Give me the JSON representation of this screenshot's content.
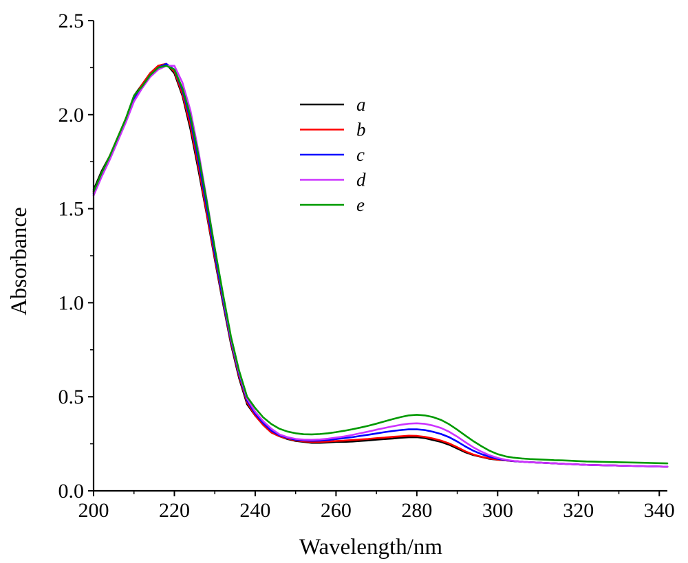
{
  "chart_data": {
    "type": "line",
    "title": "",
    "xlabel": "Wavelength/nm",
    "ylabel": "Absorbance",
    "xlim": [
      200,
      342
    ],
    "ylim": [
      0,
      2.5
    ],
    "xticks": [
      200,
      220,
      240,
      260,
      280,
      300,
      320,
      340
    ],
    "xtick_labels": [
      "200",
      "220",
      "240",
      "260",
      "280",
      "300",
      "320",
      "340"
    ],
    "yticks": [
      0,
      0.5,
      1.0,
      1.5,
      2.0,
      2.5
    ],
    "ytick_labels": [
      "0.0",
      "0.5",
      "1.0",
      "1.5",
      "2.0",
      "2.5"
    ],
    "grid": false,
    "legend_position": "upper-center",
    "x": [
      200,
      202,
      204,
      206,
      208,
      210,
      212,
      214,
      216,
      218,
      220,
      222,
      224,
      226,
      228,
      230,
      232,
      234,
      236,
      238,
      240,
      242,
      244,
      246,
      248,
      250,
      252,
      254,
      256,
      258,
      260,
      262,
      264,
      266,
      268,
      270,
      272,
      274,
      276,
      278,
      280,
      282,
      284,
      286,
      288,
      290,
      292,
      294,
      296,
      298,
      300,
      302,
      304,
      306,
      308,
      310,
      312,
      314,
      316,
      318,
      320,
      322,
      324,
      326,
      328,
      330,
      332,
      334,
      336,
      338,
      340,
      342
    ],
    "series": [
      {
        "name": "a",
        "color": "#000000",
        "values": [
          1.6,
          1.7,
          1.78,
          1.88,
          1.98,
          2.1,
          2.16,
          2.22,
          2.26,
          2.27,
          2.22,
          2.1,
          1.92,
          1.7,
          1.47,
          1.23,
          1.0,
          0.78,
          0.6,
          0.46,
          0.4,
          0.35,
          0.31,
          0.29,
          0.275,
          0.265,
          0.26,
          0.255,
          0.255,
          0.257,
          0.26,
          0.26,
          0.262,
          0.265,
          0.268,
          0.272,
          0.275,
          0.278,
          0.282,
          0.285,
          0.285,
          0.28,
          0.27,
          0.26,
          0.245,
          0.225,
          0.205,
          0.19,
          0.18,
          0.17,
          0.165,
          0.162,
          0.158,
          0.155,
          0.152,
          0.15,
          0.148,
          0.146,
          0.144,
          0.142,
          0.14,
          0.138,
          0.137,
          0.136,
          0.135,
          0.134,
          0.133,
          0.132,
          0.131,
          0.13,
          0.129,
          0.128
        ]
      },
      {
        "name": "b",
        "color": "#ff0000",
        "values": [
          1.59,
          1.69,
          1.78,
          1.88,
          1.98,
          2.09,
          2.16,
          2.22,
          2.26,
          2.27,
          2.23,
          2.11,
          1.94,
          1.72,
          1.48,
          1.24,
          1.01,
          0.79,
          0.61,
          0.47,
          0.4,
          0.35,
          0.31,
          0.29,
          0.278,
          0.268,
          0.263,
          0.26,
          0.26,
          0.262,
          0.265,
          0.267,
          0.27,
          0.273,
          0.276,
          0.28,
          0.283,
          0.287,
          0.29,
          0.293,
          0.292,
          0.287,
          0.278,
          0.267,
          0.252,
          0.232,
          0.21,
          0.193,
          0.181,
          0.172,
          0.166,
          0.162,
          0.158,
          0.155,
          0.152,
          0.15,
          0.148,
          0.146,
          0.144,
          0.142,
          0.14,
          0.138,
          0.137,
          0.136,
          0.135,
          0.134,
          0.133,
          0.132,
          0.131,
          0.13,
          0.129,
          0.128
        ]
      },
      {
        "name": "c",
        "color": "#0000ff",
        "values": [
          1.58,
          1.68,
          1.77,
          1.87,
          1.97,
          2.08,
          2.15,
          2.21,
          2.25,
          2.27,
          2.24,
          2.13,
          1.97,
          1.75,
          1.51,
          1.26,
          1.02,
          0.8,
          0.62,
          0.48,
          0.41,
          0.36,
          0.32,
          0.295,
          0.282,
          0.272,
          0.268,
          0.266,
          0.267,
          0.27,
          0.275,
          0.28,
          0.285,
          0.292,
          0.298,
          0.305,
          0.312,
          0.318,
          0.323,
          0.327,
          0.327,
          0.323,
          0.314,
          0.302,
          0.285,
          0.262,
          0.236,
          0.213,
          0.195,
          0.181,
          0.17,
          0.163,
          0.158,
          0.155,
          0.152,
          0.15,
          0.148,
          0.146,
          0.144,
          0.142,
          0.14,
          0.138,
          0.137,
          0.136,
          0.135,
          0.134,
          0.133,
          0.132,
          0.131,
          0.13,
          0.129,
          0.128
        ]
      },
      {
        "name": "d",
        "color": "#cc33ff",
        "values": [
          1.57,
          1.67,
          1.76,
          1.86,
          1.96,
          2.07,
          2.14,
          2.2,
          2.24,
          2.26,
          2.26,
          2.17,
          2.02,
          1.8,
          1.55,
          1.29,
          1.04,
          0.81,
          0.63,
          0.49,
          0.42,
          0.37,
          0.33,
          0.3,
          0.285,
          0.276,
          0.272,
          0.271,
          0.273,
          0.277,
          0.283,
          0.289,
          0.297,
          0.306,
          0.315,
          0.325,
          0.334,
          0.343,
          0.351,
          0.357,
          0.359,
          0.356,
          0.347,
          0.334,
          0.314,
          0.288,
          0.259,
          0.231,
          0.208,
          0.189,
          0.175,
          0.165,
          0.159,
          0.155,
          0.152,
          0.15,
          0.148,
          0.146,
          0.144,
          0.142,
          0.14,
          0.138,
          0.137,
          0.136,
          0.135,
          0.134,
          0.133,
          0.132,
          0.131,
          0.13,
          0.129,
          0.128
        ]
      },
      {
        "name": "e",
        "color": "#009900",
        "values": [
          1.59,
          1.69,
          1.78,
          1.88,
          1.98,
          2.1,
          2.15,
          2.21,
          2.25,
          2.26,
          2.24,
          2.14,
          1.99,
          1.78,
          1.54,
          1.29,
          1.05,
          0.82,
          0.64,
          0.5,
          0.44,
          0.39,
          0.355,
          0.33,
          0.315,
          0.306,
          0.301,
          0.3,
          0.302,
          0.306,
          0.312,
          0.319,
          0.327,
          0.336,
          0.346,
          0.357,
          0.369,
          0.381,
          0.392,
          0.401,
          0.404,
          0.401,
          0.392,
          0.377,
          0.354,
          0.325,
          0.294,
          0.264,
          0.237,
          0.213,
          0.195,
          0.183,
          0.176,
          0.172,
          0.169,
          0.167,
          0.165,
          0.163,
          0.162,
          0.16,
          0.158,
          0.156,
          0.155,
          0.154,
          0.153,
          0.152,
          0.151,
          0.15,
          0.149,
          0.148,
          0.147,
          0.146
        ]
      }
    ]
  }
}
